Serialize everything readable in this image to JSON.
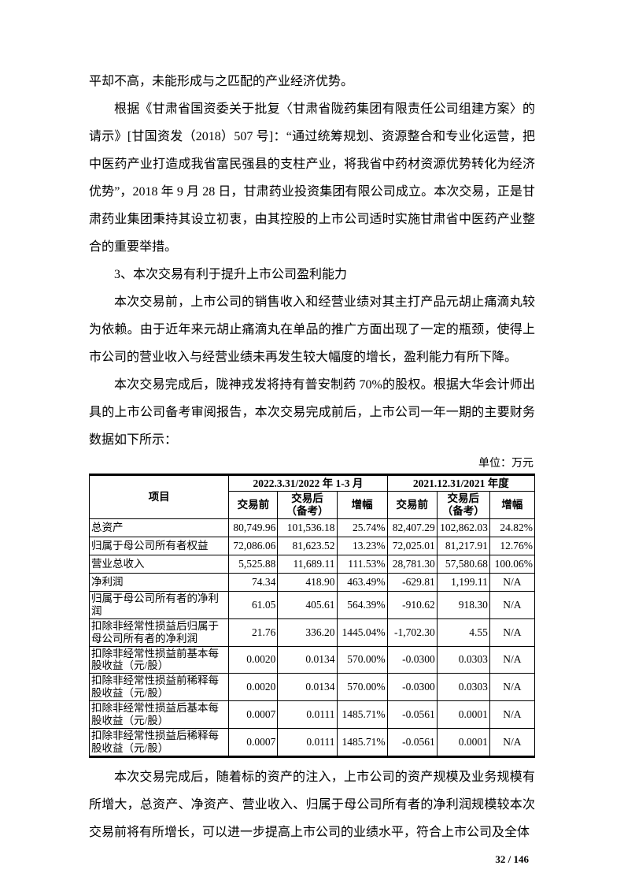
{
  "paragraphs": [
    {
      "text": "平却不高，未能形成与之匹配的产业经济优势。"
    },
    {
      "text": "根据《甘肃省国资委关于批复〈甘肃省陇药集团有限责任公司组建方案〉的请示》[甘国资发（2018）507 号]：“通过统筹规划、资源整合和专业化运营，把中医药产业打造成我省富民强县的支柱产业，将我省中药材资源优势转化为经济优势”，2018 年 9 月 28 日，甘肃药业投资集团有限公司成立。本次交易，正是甘肃药业集团秉持其设立初衷，由其控股的上市公司适时实施甘肃省中医药产业整合的重要举措。"
    },
    {
      "text": "3、本次交易有利于提升上市公司盈利能力"
    },
    {
      "text": "本次交易前，上市公司的销售收入和经营业绩对其主打产品元胡止痛滴丸较为依赖。由于近年来元胡止痛滴丸在单品的推广方面出现了一定的瓶颈，使得上市公司的营业收入与经营业绩未再发生较大幅度的增长，盈利能力有所下降。"
    },
    {
      "text": "本次交易完成后，陇神戎发将持有普安制药 70%的股权。根据大华会计师出具的上市公司备考审阅报告，本次交易完成前后，上市公司一年一期的主要财务数据如下所示："
    }
  ],
  "table": {
    "unit_label": "单位：万元",
    "item_header": "项目",
    "groups": [
      {
        "label": "2022.3.31/2022 年 1-3 月",
        "cols": [
          "交易前",
          "交易后\n（备考）",
          "增幅"
        ]
      },
      {
        "label": "2021.12.31/2021 年度",
        "cols": [
          "交易前",
          "交易后\n（备考）",
          "增幅"
        ]
      }
    ],
    "rows": [
      {
        "item": "总资产",
        "values": [
          "80,749.96",
          "101,536.18",
          "25.74%",
          "82,407.29",
          "102,862.03",
          "24.82%"
        ]
      },
      {
        "item": "归属于母公司所有者权益",
        "values": [
          "72,086.06",
          "81,623.52",
          "13.23%",
          "72,025.01",
          "81,217.91",
          "12.76%"
        ]
      },
      {
        "item": "营业总收入",
        "values": [
          "5,525.88",
          "11,689.11",
          "111.53%",
          "28,781.30",
          "57,580.68",
          "100.06%"
        ]
      },
      {
        "item": "净利润",
        "values": [
          "74.34",
          "418.90",
          "463.49%",
          "-629.81",
          "1,199.11",
          "N/A"
        ]
      },
      {
        "item": "归属于母公司所有者的净利润",
        "values": [
          "61.05",
          "405.61",
          "564.39%",
          "-910.62",
          "918.30",
          "N/A"
        ]
      },
      {
        "item": "扣除非经常性损益后归属于母公司所有者的净利润",
        "values": [
          "21.76",
          "336.20",
          "1445.04%",
          "-1,702.30",
          "4.55",
          "N/A"
        ]
      },
      {
        "item": "扣除非经常性损益前基本每股收益（元/股）",
        "values": [
          "0.0020",
          "0.0134",
          "570.00%",
          "-0.0300",
          "0.0303",
          "N/A"
        ]
      },
      {
        "item": "扣除非经常性损益前稀释每股收益（元/股）",
        "values": [
          "0.0020",
          "0.0134",
          "570.00%",
          "-0.0300",
          "0.0303",
          "N/A"
        ]
      },
      {
        "item": "扣除非经常性损益后基本每股收益（元/股）",
        "values": [
          "0.0007",
          "0.0111",
          "1485.71%",
          "-0.0561",
          "0.0001",
          "N/A"
        ]
      },
      {
        "item": "扣除非经常性损益后稀释每股收益（元/股）",
        "values": [
          "0.0007",
          "0.0111",
          "1485.71%",
          "-0.0561",
          "0.0001",
          "N/A"
        ]
      }
    ]
  },
  "closing_paragraph": "本次交易完成后，随着标的资产的注入，上市公司的资产规模及业务规模有所增大，总资产、净资产、营业收入、归属于母公司所有者的净利润规模较本次交易前将有所增长，可以进一步提高上市公司的业绩水平，符合上市公司及全体",
  "page_number": "32 / 146"
}
